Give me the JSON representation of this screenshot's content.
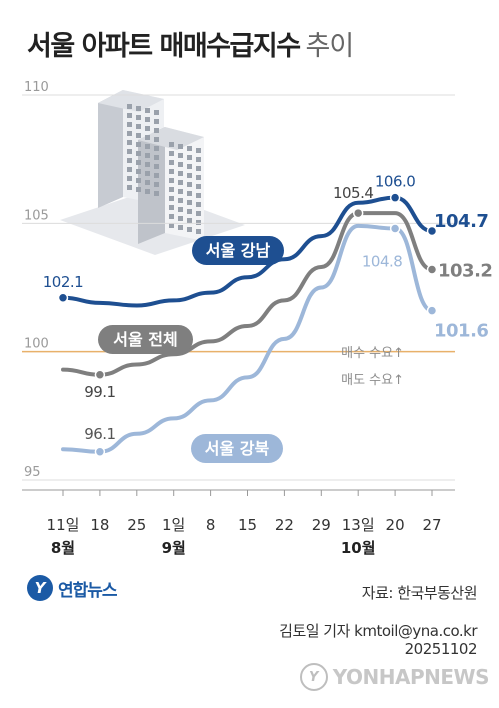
{
  "title": {
    "main": "서울 아파트 매매수급지수",
    "sub": "추이"
  },
  "chart_data": {
    "type": "line",
    "categories": [
      "11일",
      "18",
      "25",
      "1일",
      "8",
      "15",
      "22",
      "29",
      "13일",
      "20",
      "27"
    ],
    "month_labels": [
      {
        "text": "8월",
        "index": 0
      },
      {
        "text": "9월",
        "index": 3
      },
      {
        "text": "10월",
        "index": 8
      }
    ],
    "yticks": [
      95,
      100,
      105,
      110
    ],
    "ylim": [
      95,
      110
    ],
    "series": [
      {
        "name": "서울 강남",
        "color": "#1e4f91",
        "values": [
          102.1,
          101.9,
          101.8,
          102.0,
          102.3,
          102.9,
          103.6,
          104.5,
          105.8,
          106.0,
          104.7
        ],
        "point_labels": [
          0,
          9,
          10
        ]
      },
      {
        "name": "서울 전체",
        "color": "#7f7f7f",
        "values": [
          99.3,
          99.1,
          99.5,
          99.9,
          100.4,
          101.0,
          102.0,
          103.3,
          105.4,
          105.4,
          103.2
        ],
        "point_labels": [
          1,
          8,
          10
        ]
      },
      {
        "name": "서울 강북",
        "color": "#9db7d9",
        "values": [
          96.2,
          96.1,
          96.8,
          97.4,
          98.1,
          99.0,
          100.5,
          102.5,
          104.9,
          104.8,
          101.6
        ],
        "point_labels": [
          1,
          9,
          10
        ]
      }
    ],
    "reference_lines": [
      {
        "value": 100,
        "color": "#e8b16a",
        "labels": [
          "매수 수요↑",
          "매도 수요↑"
        ]
      }
    ]
  },
  "source": "자료: 한국부동산원",
  "reporter": "김토일 기자 kmtoil@yna.co.kr",
  "date": "20251102",
  "logo": {
    "mark": "Y",
    "text": "연합뉴스"
  },
  "watermark": {
    "mark": "Y",
    "text": "YONHAPNEWS"
  }
}
